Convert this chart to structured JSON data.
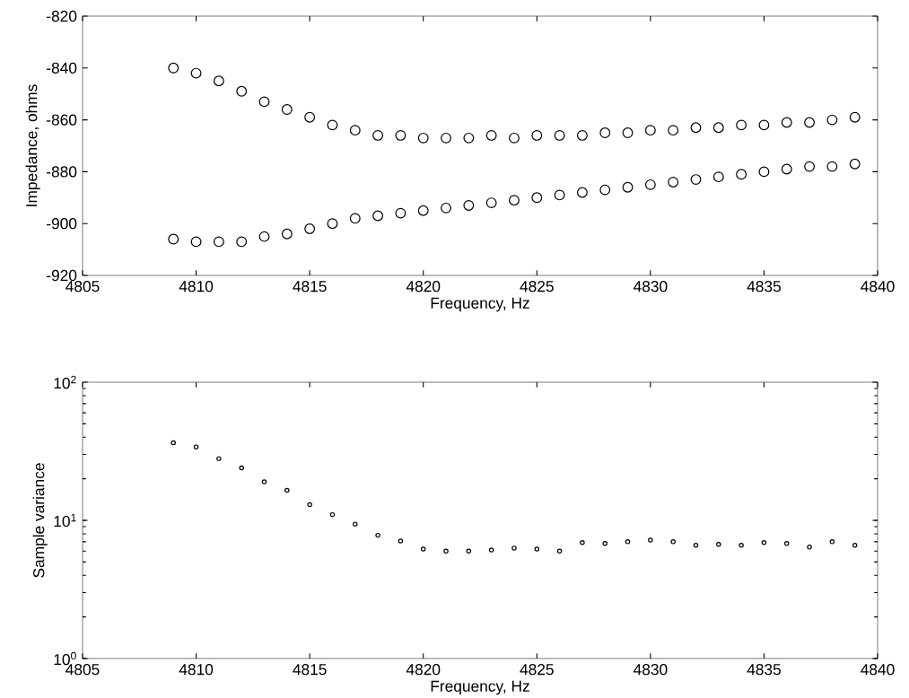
{
  "chart_data": [
    {
      "type": "scatter",
      "xlabel": "Frequency, Hz",
      "ylabel": "Impedance, ohms",
      "marker": "circle",
      "grid": false,
      "xlim": [
        4805,
        4840
      ],
      "ylim": [
        -920,
        -820
      ],
      "xticks": [
        4805,
        4810,
        4815,
        4820,
        4825,
        4830,
        4835,
        4840
      ],
      "yticks": [
        -920,
        -900,
        -880,
        -860,
        -840,
        -820
      ],
      "x": [
        4809,
        4810,
        4811,
        4812,
        4813,
        4814,
        4815,
        4816,
        4817,
        4818,
        4819,
        4820,
        4821,
        4822,
        4823,
        4824,
        4825,
        4826,
        4827,
        4828,
        4829,
        4830,
        4831,
        4832,
        4833,
        4834,
        4835,
        4836,
        4837,
        4838,
        4839
      ],
      "series": [
        {
          "color": "#000000",
          "values": [
            -840,
            -842,
            -845,
            -849,
            -853,
            -856,
            -859,
            -862,
            -864,
            -866,
            -866,
            -867,
            -867,
            -867,
            -866,
            -867,
            -866,
            -866,
            -866,
            -865,
            -865,
            -864,
            -864,
            -863,
            -863,
            -862,
            -862,
            -861,
            -861,
            -860,
            -859
          ]
        },
        {
          "color": "#000000",
          "values": [
            -906,
            -907,
            -907,
            -907,
            -905,
            -904,
            -902,
            -900,
            -898,
            -897,
            -896,
            -895,
            -894,
            -893,
            -892,
            -891,
            -890,
            -889,
            -888,
            -887,
            -886,
            -885,
            -884,
            -883,
            -882,
            -881,
            -880,
            -879,
            -878,
            -878,
            -877
          ]
        }
      ]
    },
    {
      "type": "scatter",
      "xlabel": "Frequency, Hz",
      "ylabel": "Sample variance",
      "marker": "circle",
      "grid": false,
      "log": "y",
      "xlim": [
        4805,
        4840
      ],
      "ylim": [
        1,
        100
      ],
      "xticks": [
        4805,
        4810,
        4815,
        4820,
        4825,
        4830,
        4835,
        4840
      ],
      "yticks": [
        {
          "value": 1,
          "label": "10$^{0}$"
        },
        {
          "value": 10,
          "label": "10$^{1}$"
        },
        {
          "value": 100,
          "label": "10$^{2}$"
        }
      ],
      "x": [
        4809,
        4810,
        4811,
        4812,
        4813,
        4814,
        4815,
        4816,
        4817,
        4818,
        4819,
        4820,
        4821,
        4822,
        4823,
        4824,
        4825,
        4826,
        4827,
        4828,
        4829,
        4830,
        4831,
        4832,
        4833,
        4834,
        4835,
        4836,
        4837,
        4838,
        4839
      ],
      "values": [
        36.5,
        34,
        28,
        24,
        19,
        16.5,
        13,
        11,
        9.4,
        7.8,
        7.1,
        6.2,
        6.0,
        6.0,
        6.1,
        6.3,
        6.2,
        6.0,
        6.9,
        6.8,
        7.0,
        7.2,
        7.0,
        6.6,
        6.7,
        6.6,
        6.9,
        6.8,
        6.4,
        7.0,
        6.6
      ],
      "color": "#000000"
    }
  ]
}
